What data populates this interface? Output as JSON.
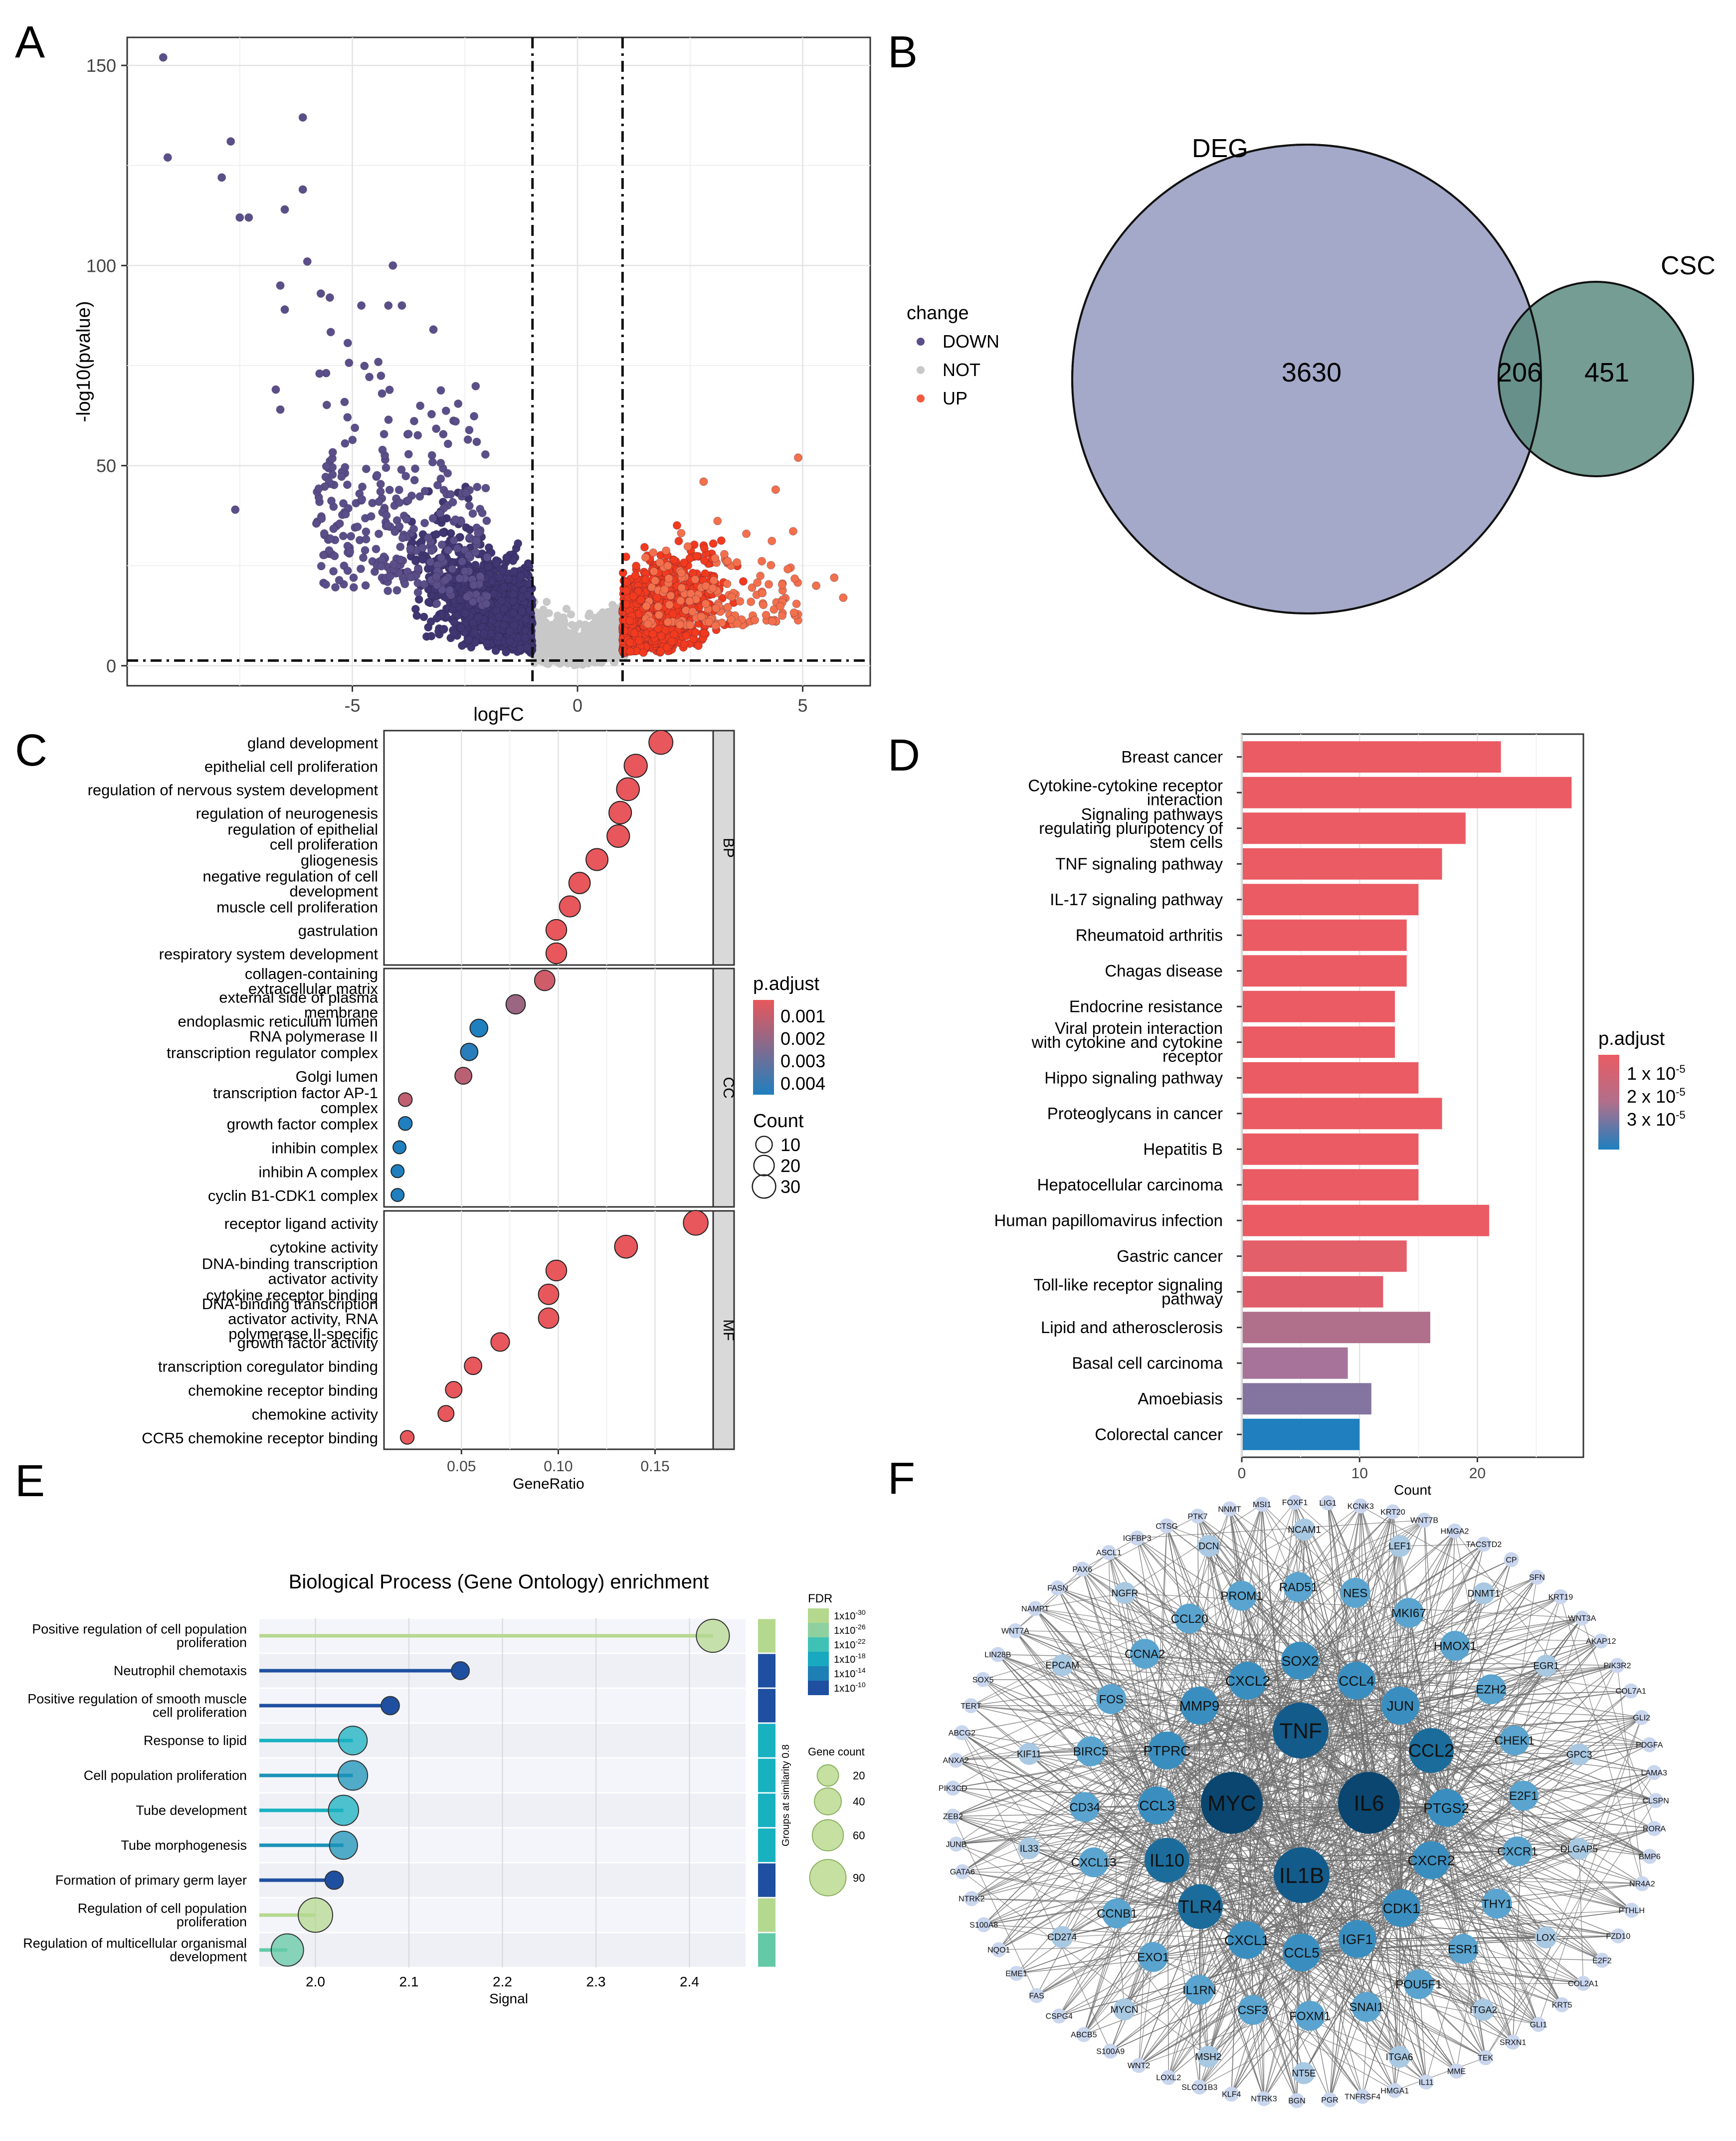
{
  "panels": {
    "a": "A",
    "b": "B",
    "c": "C",
    "d": "D",
    "e": "E",
    "f": "F"
  },
  "chart_data": [
    {
      "id": "A",
      "type": "scatter",
      "title": "",
      "xlabel": "logFC",
      "ylabel": "-log10(pvalue)",
      "xlim": [
        -10,
        6.5
      ],
      "ylim": [
        -5,
        157
      ],
      "xticks": [
        -5,
        0,
        5
      ],
      "yticks": [
        0,
        50,
        100,
        150
      ],
      "grid": true,
      "thresholds": {
        "logFC": [
          -1,
          1
        ],
        "neglog10p": 1.3
      },
      "legend": {
        "title": "change",
        "position": "right",
        "items": [
          {
            "name": "DOWN",
            "color": "#5b4f8a"
          },
          {
            "name": "NOT",
            "color": "#c8c8c8"
          },
          {
            "name": "UP",
            "color": "#f2583e"
          }
        ]
      },
      "highlighted_points": [
        {
          "x": -9.2,
          "y": 152,
          "group": "DOWN"
        },
        {
          "x": -9.1,
          "y": 127,
          "group": "DOWN"
        },
        {
          "x": -7.7,
          "y": 131,
          "group": "DOWN"
        },
        {
          "x": -7.9,
          "y": 122,
          "group": "DOWN"
        },
        {
          "x": -7.5,
          "y": 112,
          "group": "DOWN"
        },
        {
          "x": -7.3,
          "y": 112,
          "group": "DOWN"
        },
        {
          "x": -6.1,
          "y": 137,
          "group": "DOWN"
        },
        {
          "x": -6.1,
          "y": 119,
          "group": "DOWN"
        },
        {
          "x": -6.5,
          "y": 114,
          "group": "DOWN"
        },
        {
          "x": -6.0,
          "y": 101,
          "group": "DOWN"
        },
        {
          "x": -4.1,
          "y": 100,
          "group": "DOWN"
        },
        {
          "x": -5.7,
          "y": 93,
          "group": "DOWN"
        },
        {
          "x": -6.6,
          "y": 95,
          "group": "DOWN"
        },
        {
          "x": -5.5,
          "y": 92,
          "group": "DOWN"
        },
        {
          "x": -4.8,
          "y": 90,
          "group": "DOWN"
        },
        {
          "x": -4.2,
          "y": 90,
          "group": "DOWN"
        },
        {
          "x": -3.9,
          "y": 90,
          "group": "DOWN"
        },
        {
          "x": -6.5,
          "y": 89,
          "group": "DOWN"
        },
        {
          "x": -3.2,
          "y": 84,
          "group": "DOWN"
        },
        {
          "x": -7.6,
          "y": 39,
          "group": "DOWN"
        },
        {
          "x": -6.7,
          "y": 69,
          "group": "DOWN"
        },
        {
          "x": -6.6,
          "y": 64,
          "group": "DOWN"
        },
        {
          "x": 4.9,
          "y": 52,
          "group": "UP"
        },
        {
          "x": 2.8,
          "y": 46,
          "group": "UP"
        },
        {
          "x": 4.4,
          "y": 44,
          "group": "UP"
        },
        {
          "x": 5.7,
          "y": 22,
          "group": "UP"
        },
        {
          "x": 5.3,
          "y": 20,
          "group": "UP"
        },
        {
          "x": 5.9,
          "y": 17,
          "group": "UP"
        }
      ]
    },
    {
      "id": "B",
      "type": "venn",
      "sets": [
        {
          "name": "DEG",
          "color": "#a4a9c9"
        },
        {
          "name": "CSC",
          "color": "#5d8c80"
        }
      ],
      "regions": {
        "DEG_only": 3630,
        "intersection": 206,
        "CSC_only": 451
      }
    },
    {
      "id": "C",
      "type": "scatter",
      "xlabel": "GeneRatio",
      "xticks": [
        "0.05",
        "0.10",
        "0.15"
      ],
      "xlim": [
        0.01,
        0.18
      ],
      "grid": true,
      "facets": [
        "BP",
        "CC",
        "MF"
      ],
      "color_legend": {
        "title": "p.adjust",
        "labels": [
          "0.001",
          "0.002",
          "0.003",
          "0.004"
        ],
        "low_color": "#e8575c",
        "high_color": "#1f7fbf"
      },
      "size_legend": {
        "title": "Count",
        "labels": [
          "10",
          "20",
          "30"
        ]
      },
      "terms": [
        {
          "facet": "BP",
          "label": "gland development",
          "x": 0.153,
          "count": 32,
          "p": 0.0003
        },
        {
          "facet": "BP",
          "label": "epithelial cell proliferation",
          "x": 0.14,
          "count": 29,
          "p": 0.0003
        },
        {
          "facet": "BP",
          "label": "regulation of nervous system development",
          "x": 0.136,
          "count": 28,
          "p": 0.0003
        },
        {
          "facet": "BP",
          "label": "regulation of neurogenesis",
          "x": 0.132,
          "count": 27,
          "p": 0.0003
        },
        {
          "facet": "BP",
          "label": "regulation of epithelial\ncell proliferation",
          "x": 0.131,
          "count": 27,
          "p": 0.0003
        },
        {
          "facet": "BP",
          "label": "gliogenesis",
          "x": 0.12,
          "count": 25,
          "p": 0.0003
        },
        {
          "facet": "BP",
          "label": "negative regulation of cell\ndevelopment",
          "x": 0.111,
          "count": 23,
          "p": 0.0003
        },
        {
          "facet": "BP",
          "label": "muscle cell proliferation",
          "x": 0.106,
          "count": 22,
          "p": 0.0003
        },
        {
          "facet": "BP",
          "label": "gastrulation",
          "x": 0.099,
          "count": 21,
          "p": 0.0003
        },
        {
          "facet": "BP",
          "label": "respiratory system development",
          "x": 0.099,
          "count": 21,
          "p": 0.0003
        },
        {
          "facet": "CC",
          "label": "collagen-containing\nextracellular matrix",
          "x": 0.093,
          "count": 20,
          "p": 0.0008
        },
        {
          "facet": "CC",
          "label": "external side of plasma\nmembrane",
          "x": 0.078,
          "count": 17,
          "p": 0.0018
        },
        {
          "facet": "CC",
          "label": "endoplasmic reticulum lumen\nRNA polymerase II",
          "x": 0.059,
          "count": 13,
          "p": 0.0042
        },
        {
          "facet": "CC",
          "label": "transcription regulator  complex",
          "x": 0.054,
          "count": 12,
          "p": 0.004
        },
        {
          "facet": "CC",
          "label": "Golgi lumen",
          "x": 0.051,
          "count": 11,
          "p": 0.0012
        },
        {
          "facet": "CC",
          "label": "transcription factor AP-1\ncomplex",
          "x": 0.021,
          "count": 5,
          "p": 0.0011
        },
        {
          "facet": "CC",
          "label": "growth factor complex",
          "x": 0.021,
          "count": 5,
          "p": 0.0042
        },
        {
          "facet": "CC",
          "label": "inhibin complex",
          "x": 0.018,
          "count": 4,
          "p": 0.0042
        },
        {
          "facet": "CC",
          "label": "inhibin A complex",
          "x": 0.017,
          "count": 4,
          "p": 0.0042
        },
        {
          "facet": "CC",
          "label": "cyclin B1-CDK1 complex",
          "x": 0.017,
          "count": 4,
          "p": 0.0042
        },
        {
          "facet": "MF",
          "label": "receptor ligand activity",
          "x": 0.171,
          "count": 35,
          "p": 0.0003
        },
        {
          "facet": "MF",
          "label": "cytokine activity",
          "x": 0.135,
          "count": 28,
          "p": 0.0003
        },
        {
          "facet": "MF",
          "label": "DNA-binding transcription\nactivator activity",
          "x": 0.099,
          "count": 21,
          "p": 0.0003
        },
        {
          "facet": "MF",
          "label": "cytokine receptor binding",
          "x": 0.095,
          "count": 20,
          "p": 0.0003
        },
        {
          "facet": "MF",
          "label": "DNA-binding transcription\nactivator activity, RNA\npolymerase II-specific",
          "x": 0.095,
          "count": 20,
          "p": 0.0003
        },
        {
          "facet": "MF",
          "label": "growth factor activity",
          "x": 0.07,
          "count": 15,
          "p": 0.0003
        },
        {
          "facet": "MF",
          "label": "transcription coregulator binding",
          "x": 0.056,
          "count": 12,
          "p": 0.0003
        },
        {
          "facet": "MF",
          "label": "chemokine receptor binding",
          "x": 0.046,
          "count": 10,
          "p": 0.0003
        },
        {
          "facet": "MF",
          "label": "chemokine activity",
          "x": 0.042,
          "count": 9,
          "p": 0.0003
        },
        {
          "facet": "MF",
          "label": "CCR5 chemokine receptor binding",
          "x": 0.022,
          "count": 5,
          "p": 0.0003
        }
      ]
    },
    {
      "id": "D",
      "type": "bar",
      "orientation": "horizontal",
      "xlabel": "Count",
      "xticks": [
        "0",
        "10",
        "20"
      ],
      "xlim": [
        0,
        29
      ],
      "grid": true,
      "legend": {
        "title": "p.adjust",
        "labels": [
          "1 x 10",
          "2 x 10",
          "3 x 10"
        ],
        "exponent": "-5"
      },
      "categories": [
        "Breast cancer",
        "Cytokine-cytokine receptor\ninteraction",
        "Signaling pathways\nregulating pluripotency of\nstem cells",
        "TNF signaling pathway",
        "IL-17 signaling pathway",
        "Rheumatoid arthritis",
        "Chagas disease",
        "Endocrine resistance",
        "Viral protein interaction\nwith cytokine and cytokine\nreceptor",
        "Hippo signaling pathway",
        "Proteoglycans in cancer",
        "Hepatitis B",
        "Hepatocellular carcinoma",
        "Human papillomavirus infection",
        "Gastric cancer",
        "Toll-like receptor signaling\npathway",
        "Lipid and atherosclerosis",
        "Basal cell carcinoma",
        "Amoebiasis",
        "Colorectal cancer"
      ],
      "values": [
        22,
        28,
        19,
        17,
        15,
        14,
        14,
        13,
        13,
        15,
        17,
        15,
        15,
        21,
        14,
        12,
        16,
        9,
        11,
        10
      ],
      "colors": [
        "#ea5b63",
        "#ea5b63",
        "#ea5b63",
        "#ea5b63",
        "#ea5b63",
        "#ea5b63",
        "#ea5b63",
        "#ea5b63",
        "#ea5b63",
        "#ea5b63",
        "#ea5b63",
        "#ea5b63",
        "#ea5b63",
        "#ea5b63",
        "#e35f6a",
        "#e05e6b",
        "#b06f8b",
        "#a7739a",
        "#8475a0",
        "#1f7fbf"
      ]
    },
    {
      "id": "E",
      "type": "scatter",
      "subtype": "lollipop",
      "title": "Biological Process (Gene Ontology) enrichment",
      "xlabel": "Signal",
      "xticks": [
        "2.0",
        "2.1",
        "2.2",
        "2.3",
        "2.4"
      ],
      "xlim": [
        1.94,
        2.46
      ],
      "fdr_legend": {
        "title": "FDR",
        "labels": [
          "1x10",
          "1x10",
          "1x10",
          "1x10",
          "1x10",
          "1x10"
        ],
        "exponents": [
          "-30",
          "-26",
          "-22",
          "-18",
          "-14",
          "-10"
        ]
      },
      "count_legend": {
        "title": "Gene count",
        "labels": [
          "20",
          "40",
          "60",
          "90"
        ]
      },
      "group_label": "Groups at similarity 0.8",
      "terms": [
        {
          "label": "Positive regulation of cell population\nproliferation",
          "signal": 2.425,
          "count": 70,
          "color": "#b5d88f"
        },
        {
          "label": "Neutrophil chemotaxis",
          "signal": 2.155,
          "count": 11,
          "color": "#1f4fa0"
        },
        {
          "label": "Positive regulation of smooth muscle\ncell proliferation",
          "signal": 2.08,
          "count": 12,
          "color": "#1f4fa0"
        },
        {
          "label": "Response to lipid",
          "signal": 2.04,
          "count": 48,
          "color": "#18b1c0"
        },
        {
          "label": "Cell population proliferation",
          "signal": 2.04,
          "count": 52,
          "color": "#1a92b8"
        },
        {
          "label": "Tube development",
          "signal": 2.03,
          "count": 55,
          "color": "#18b1c0"
        },
        {
          "label": "Tube morphogenesis",
          "signal": 2.03,
          "count": 45,
          "color": "#1a92b8"
        },
        {
          "label": "Formation of primary germ layer",
          "signal": 2.02,
          "count": 12,
          "color": "#1f4fa0"
        },
        {
          "label": "Regulation of cell population\nproliferation",
          "signal": 2.0,
          "count": 78,
          "color": "#b5d88f"
        },
        {
          "label": "Regulation of multicellular organismal\ndevelopment",
          "signal": 1.97,
          "count": 66,
          "color": "#63c9a6"
        }
      ],
      "group_colors": [
        "#b5d88f",
        "#1f4fa0",
        "#1f4fa0",
        "#18b1c0",
        "#18b1c0",
        "#18b1c0",
        "#18b1c0",
        "#1f4fa0",
        "#b5d88f",
        "#63c9a6"
      ]
    },
    {
      "id": "F",
      "type": "network",
      "hubs": [
        {
          "label": "MYC",
          "level": 1
        },
        {
          "label": "IL6",
          "level": 1
        },
        {
          "label": "TNF",
          "level": 2
        },
        {
          "label": "IL1B",
          "level": 2
        },
        {
          "label": "IL10",
          "level": 3
        },
        {
          "label": "TLR4",
          "level": 3
        },
        {
          "label": "CCL2",
          "level": 3
        },
        {
          "label": "MMP9",
          "level": 4
        },
        {
          "label": "PTPRC",
          "level": 4
        },
        {
          "label": "JUN",
          "level": 4
        },
        {
          "label": "CCL5",
          "level": 4
        },
        {
          "label": "CXCL2",
          "level": 4
        },
        {
          "label": "SOX2",
          "level": 4
        },
        {
          "label": "PTGS2",
          "level": 4
        },
        {
          "label": "CXCR2",
          "level": 4
        },
        {
          "label": "CDK1",
          "level": 4
        },
        {
          "label": "CXCL1",
          "level": 4
        },
        {
          "label": "IGF1",
          "level": 4
        },
        {
          "label": "CCL3",
          "level": 4
        },
        {
          "label": "CCL4",
          "level": 4
        }
      ],
      "middle_ring": [
        "CCL20",
        "PROM1",
        "RAD51",
        "NES",
        "MKI67",
        "HMOX1",
        "EZH2",
        "CHEK1",
        "E2F1",
        "CXCR1",
        "THY1",
        "ESR1",
        "POU5F1",
        "SNAI1",
        "FOXM1",
        "CSF3",
        "IL1RN",
        "EXO1",
        "CCNB1",
        "CXCL13",
        "CD34",
        "BIRC5",
        "FOS",
        "CCNA2"
      ],
      "outer_ring": [
        "MSI1",
        "FOXF1",
        "LIG1",
        "KCNK3",
        "KRT20",
        "WNT7B",
        "HMGA2",
        "TACSTD2",
        "CP",
        "SFN",
        "KRT19",
        "WNT3A",
        "AKAP12",
        "PIK3R2",
        "COL7A1",
        "GLI2",
        "PDGFA",
        "LAMA3",
        "CLSPN",
        "RORA",
        "BMP6",
        "NR4A2",
        "PTHLH",
        "FZD10",
        "E2F2",
        "COL2A1",
        "KRT5",
        "GLI1",
        "SRXN1",
        "TEK",
        "MME",
        "IL11",
        "HMGA1",
        "TNFRSF4",
        "PGR",
        "BGN",
        "NTRK3",
        "KLF4",
        "SLCO1B3",
        "LOXL2",
        "WNT2",
        "S100A9",
        "ABCB5",
        "CSPG4",
        "FAS",
        "EME1",
        "NQO1",
        "S100A8",
        "NTRK2",
        "GATA6",
        "JUNB",
        "ZEB2",
        "PIK3CD",
        "ANXA2",
        "ABCG2",
        "TERT",
        "SOX5",
        "LIN28B",
        "WNT7A",
        "NAMPT",
        "FASN",
        "PAX6",
        "ASCL1",
        "IGFBP3",
        "CTSG",
        "PTK7",
        "NNMT"
      ],
      "inner_extra": [
        "LEF1",
        "DNMT1",
        "EGR1",
        "GPC3",
        "DLGAP5",
        "LOX",
        "ITGA2",
        "ITGA6",
        "NT5E",
        "MSH2",
        "MYCN",
        "CD274",
        "IL33",
        "KIF11",
        "EPCAM",
        "NGFR",
        "DCN",
        "NCAM1"
      ]
    }
  ]
}
